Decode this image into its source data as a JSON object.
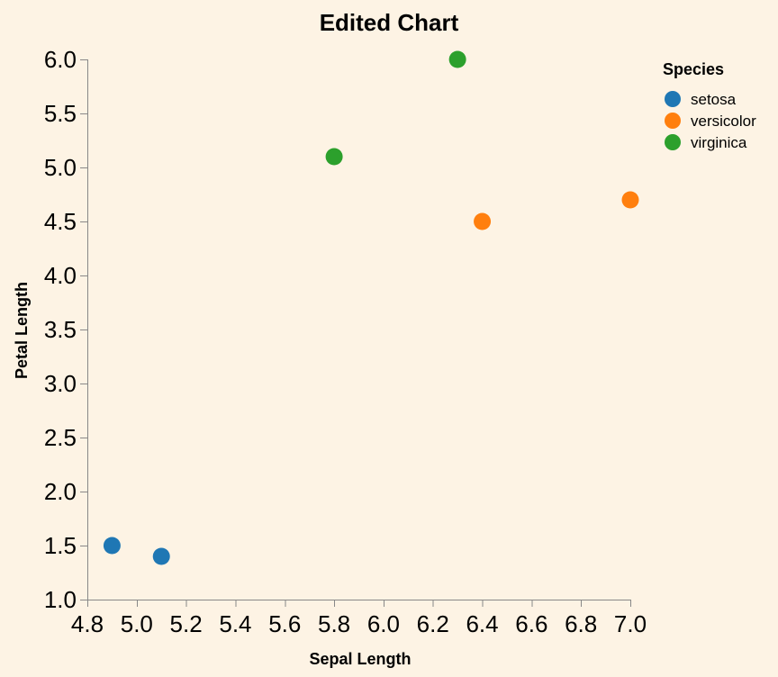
{
  "chart_data": {
    "type": "scatter",
    "title": "Edited Chart",
    "xlabel": "Sepal Length",
    "ylabel": "Petal Length",
    "xlim": [
      4.8,
      7.0
    ],
    "ylim": [
      1.0,
      6.0
    ],
    "x_ticks": [
      "4.8",
      "5.0",
      "5.2",
      "5.4",
      "5.6",
      "5.8",
      "6.0",
      "6.2",
      "6.4",
      "6.6",
      "6.8",
      "7.0"
    ],
    "y_ticks": [
      "1.0",
      "1.5",
      "2.0",
      "2.5",
      "3.0",
      "3.5",
      "4.0",
      "4.5",
      "5.0",
      "5.5",
      "6.0"
    ],
    "grid": false,
    "legend": {
      "title": "Species",
      "placement": "top-right"
    },
    "series": [
      {
        "name": "setosa",
        "color": "#1f77b4",
        "points": [
          {
            "x": 4.9,
            "y": 1.5
          },
          {
            "x": 5.1,
            "y": 1.4
          }
        ]
      },
      {
        "name": "versicolor",
        "color": "#ff7f0e",
        "points": [
          {
            "x": 6.4,
            "y": 4.5
          },
          {
            "x": 7.0,
            "y": 4.7
          }
        ]
      },
      {
        "name": "virginica",
        "color": "#2ca02c",
        "points": [
          {
            "x": 5.8,
            "y": 5.1
          },
          {
            "x": 6.3,
            "y": 6.0
          }
        ]
      }
    ]
  }
}
